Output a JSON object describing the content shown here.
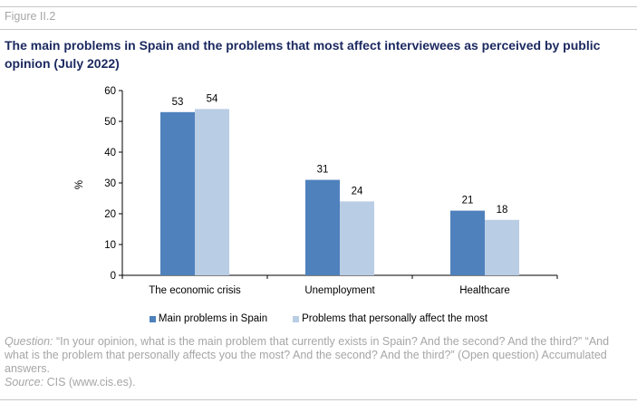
{
  "figure_label": "Figure II.2",
  "title": "The main problems in Spain and the problems that most affect interviewees as perceived by public opinion (July 2022)",
  "colors": {
    "series1": "#4f81bd",
    "series2": "#b9cde5",
    "title": "#1c2a60",
    "notes": "#a6a6a6"
  },
  "chart_data": {
    "type": "bar",
    "categories": [
      "The economic crisis",
      "Unemployment",
      "Healthcare"
    ],
    "series": [
      {
        "name": "Main problems in Spain",
        "values": [
          53,
          31,
          21
        ]
      },
      {
        "name": "Problems that personally affect the most",
        "values": [
          54,
          24,
          18
        ]
      }
    ],
    "ylabel": "%",
    "ylim": [
      0,
      60
    ],
    "yticks": [
      "0",
      "10",
      "20",
      "30",
      "40",
      "50",
      "60"
    ],
    "grid": false,
    "legend_position": "bottom",
    "data_labels": true
  },
  "notes": {
    "question_label": "Question:",
    "question_text": " “In your opinion, what is the main problem that currently exists in Spain? And the second? And the third?” “And what is the problem that personally affects you the most? And the second? And the third?” (Open question) Accumulated answers.",
    "source_label": "Source:",
    "source_text": " CIS (www.cis.es)."
  }
}
